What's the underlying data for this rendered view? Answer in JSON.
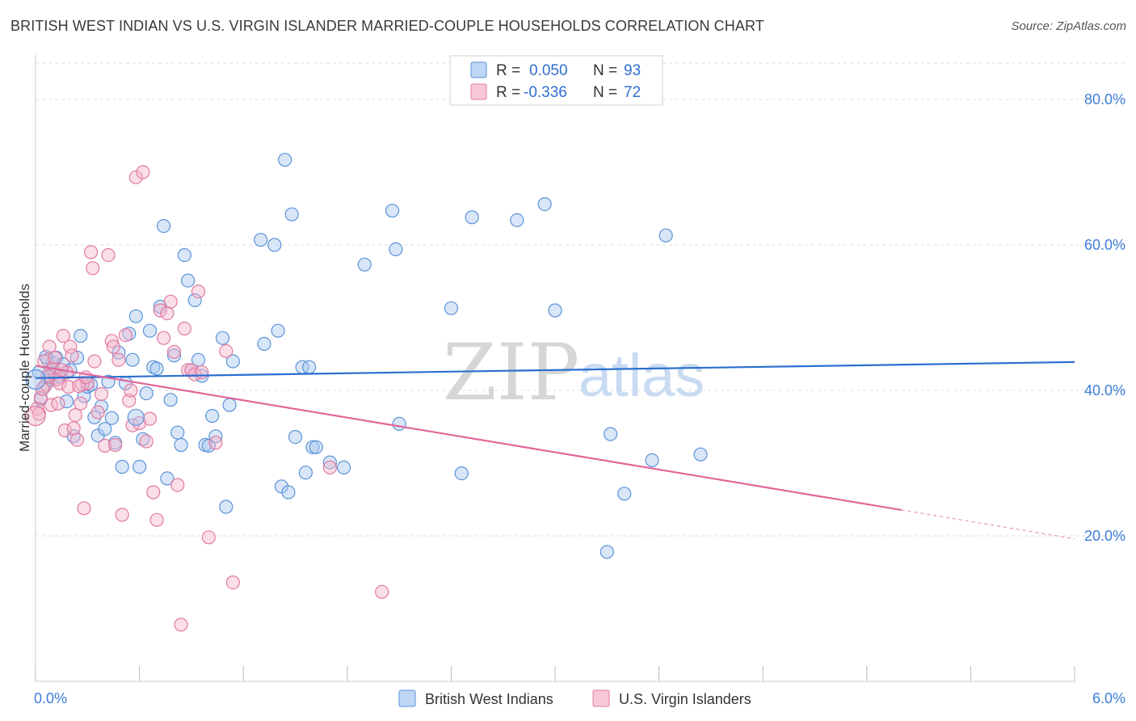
{
  "title": "BRITISH WEST INDIAN VS U.S. VIRGIN ISLANDER MARRIED-COUPLE HOUSEHOLDS CORRELATION CHART",
  "source": "Source: ZipAtlas.com",
  "watermark": {
    "zip": "ZIP",
    "atlas": "atlas"
  },
  "legend": {
    "rows": [
      {
        "r_label": "R =",
        "r_value": "0.050",
        "n_label": "N =",
        "n_value": "93"
      },
      {
        "r_label": "R =",
        "r_value": "-0.336",
        "n_label": "N =",
        "n_value": "72"
      }
    ]
  },
  "colors": {
    "blue_fill": "#a9c8f0",
    "blue_stroke": "#5b93d8",
    "blue_line": "#2a6fcf",
    "pink_fill": "#f5b5cb",
    "pink_stroke": "#e07ba0",
    "pink_line": "#e0679a",
    "tick_text": "#3d7cd6",
    "grid": "#dddddd"
  },
  "chart_data": {
    "type": "scatter",
    "xlabel": "",
    "ylabel": "Married-couple Households",
    "xlim": [
      0,
      6
    ],
    "ylim": [
      0,
      85
    ],
    "x_tick_labels": [
      "0.0%",
      "6.0%"
    ],
    "y_ticks": [
      20,
      40,
      60,
      80
    ],
    "y_tick_labels": [
      "20.0%",
      "40.0%",
      "60.0%",
      "80.0%"
    ],
    "grid": true,
    "legend_position": "top-center",
    "series": [
      {
        "name": "British West Indians",
        "r": 0.05,
        "n": 93,
        "trend": {
          "x0": 0,
          "y0": 41.7,
          "x1": 6,
          "y1": 43.9,
          "dashed_from": null
        },
        "points": [
          [
            0.02,
            42.5
          ],
          [
            0.05,
            40.5
          ],
          [
            0.07,
            44.2
          ],
          [
            0.09,
            41.5
          ],
          [
            0.1,
            43.8
          ],
          [
            0.12,
            44.5
          ],
          [
            0.14,
            42
          ],
          [
            0.16,
            43.6
          ],
          [
            0.18,
            38.5
          ],
          [
            0.2,
            42.8
          ],
          [
            0.22,
            33.7
          ],
          [
            0.24,
            44.5
          ],
          [
            0.26,
            47.5
          ],
          [
            0.28,
            39.2
          ],
          [
            0.3,
            40.5
          ],
          [
            0.32,
            40.8
          ],
          [
            0.34,
            36.3
          ],
          [
            0.36,
            33.8
          ],
          [
            0.38,
            37.8
          ],
          [
            0.4,
            34.7
          ],
          [
            0.42,
            41.2
          ],
          [
            0.44,
            36.2
          ],
          [
            0.46,
            32.8
          ],
          [
            0.48,
            45.2
          ],
          [
            0.5,
            29.5
          ],
          [
            0.52,
            41
          ],
          [
            0.54,
            47.8
          ],
          [
            0.56,
            44.2
          ],
          [
            0.58,
            50.2
          ],
          [
            0.6,
            29.5
          ],
          [
            0.62,
            33.3
          ],
          [
            0.64,
            39.6
          ],
          [
            0.66,
            48.2
          ],
          [
            0.68,
            43.2
          ],
          [
            0.7,
            43
          ],
          [
            0.72,
            51.5
          ],
          [
            0.74,
            62.6
          ],
          [
            0.76,
            27.9
          ],
          [
            0.78,
            38.7
          ],
          [
            0.8,
            44.8
          ],
          [
            0.82,
            34.2
          ],
          [
            0.84,
            32.5
          ],
          [
            0.86,
            58.6
          ],
          [
            0.88,
            55.1
          ],
          [
            0.9,
            42.8
          ],
          [
            0.92,
            52.4
          ],
          [
            0.94,
            44.2
          ],
          [
            0.96,
            42
          ],
          [
            0.98,
            32.5
          ],
          [
            1.0,
            32.4
          ],
          [
            1.02,
            36.5
          ],
          [
            1.04,
            33.7
          ],
          [
            1.08,
            47.2
          ],
          [
            1.1,
            24
          ],
          [
            1.12,
            38
          ],
          [
            1.14,
            44
          ],
          [
            1.3,
            60.7
          ],
          [
            1.32,
            46.4
          ],
          [
            1.38,
            60
          ],
          [
            1.4,
            48.2
          ],
          [
            1.42,
            26.8
          ],
          [
            1.44,
            71.7
          ],
          [
            1.46,
            26
          ],
          [
            1.48,
            64.2
          ],
          [
            1.5,
            33.6
          ],
          [
            1.54,
            43.2
          ],
          [
            1.56,
            28.7
          ],
          [
            1.58,
            43.2
          ],
          [
            1.6,
            32.2
          ],
          [
            1.62,
            32.2
          ],
          [
            1.7,
            30.1
          ],
          [
            1.78,
            29.4
          ],
          [
            1.9,
            57.3
          ],
          [
            2.06,
            64.7
          ],
          [
            2.08,
            59.4
          ],
          [
            2.1,
            35.4
          ],
          [
            2.4,
            51.3
          ],
          [
            2.46,
            28.6
          ],
          [
            2.52,
            63.8
          ],
          [
            2.78,
            63.4
          ],
          [
            2.94,
            65.6
          ],
          [
            3.0,
            51
          ],
          [
            3.3,
            17.8
          ],
          [
            3.32,
            34
          ],
          [
            3.4,
            25.8
          ],
          [
            3.56,
            30.4
          ],
          [
            3.64,
            61.3
          ],
          [
            3.84,
            31.2
          ],
          [
            0.03,
            38.8
          ],
          [
            0.06,
            44.6
          ],
          [
            0.08,
            41.8
          ],
          [
            0.11,
            42.4
          ],
          [
            0.13,
            41.9
          ]
        ],
        "radius": 8
      },
      {
        "name": "U.S. Virgin Islanders",
        "r": -0.336,
        "n": 72,
        "trend": {
          "x0": 0,
          "y0": 43.4,
          "x1": 6,
          "y1": 19.6,
          "dashed_from": 5.0
        },
        "points": [
          [
            0.01,
            37.5
          ],
          [
            0.03,
            39
          ],
          [
            0.05,
            44
          ],
          [
            0.06,
            40.8
          ],
          [
            0.08,
            46
          ],
          [
            0.09,
            38
          ],
          [
            0.1,
            43
          ],
          [
            0.12,
            41.5
          ],
          [
            0.14,
            41
          ],
          [
            0.16,
            47.5
          ],
          [
            0.17,
            34.5
          ],
          [
            0.18,
            42.5
          ],
          [
            0.2,
            46
          ],
          [
            0.22,
            34.8
          ],
          [
            0.24,
            33.2
          ],
          [
            0.26,
            38.2
          ],
          [
            0.27,
            40.8
          ],
          [
            0.28,
            23.8
          ],
          [
            0.3,
            41
          ],
          [
            0.32,
            59
          ],
          [
            0.33,
            56.8
          ],
          [
            0.34,
            44
          ],
          [
            0.36,
            37
          ],
          [
            0.38,
            39.5
          ],
          [
            0.4,
            32.4
          ],
          [
            0.42,
            58.6
          ],
          [
            0.44,
            46.8
          ],
          [
            0.45,
            46
          ],
          [
            0.46,
            32.5
          ],
          [
            0.48,
            44.2
          ],
          [
            0.5,
            22.9
          ],
          [
            0.52,
            47.6
          ],
          [
            0.54,
            38.6
          ],
          [
            0.55,
            40
          ],
          [
            0.56,
            35.2
          ],
          [
            0.58,
            69.3
          ],
          [
            0.6,
            35.5
          ],
          [
            0.62,
            70
          ],
          [
            0.64,
            33
          ],
          [
            0.66,
            36.1
          ],
          [
            0.68,
            26
          ],
          [
            0.7,
            22.2
          ],
          [
            0.72,
            51
          ],
          [
            0.74,
            47.2
          ],
          [
            0.76,
            50.6
          ],
          [
            0.78,
            52.2
          ],
          [
            0.8,
            45.3
          ],
          [
            0.82,
            27
          ],
          [
            0.84,
            7.8
          ],
          [
            0.86,
            48.5
          ],
          [
            0.88,
            42.8
          ],
          [
            0.9,
            42.8
          ],
          [
            0.92,
            42.2
          ],
          [
            0.94,
            53.6
          ],
          [
            0.96,
            42.5
          ],
          [
            1.0,
            19.8
          ],
          [
            1.04,
            32.8
          ],
          [
            1.1,
            45.4
          ],
          [
            1.14,
            13.6
          ],
          [
            1.7,
            29.4
          ],
          [
            2.0,
            12.3
          ],
          [
            0.02,
            36.8
          ],
          [
            0.04,
            40.2
          ],
          [
            0.07,
            42
          ],
          [
            0.11,
            44.5
          ],
          [
            0.13,
            38.2
          ],
          [
            0.15,
            42.8
          ],
          [
            0.19,
            40.5
          ],
          [
            0.21,
            44.8
          ],
          [
            0.23,
            36.6
          ],
          [
            0.25,
            40.6
          ],
          [
            0.29,
            41.8
          ]
        ],
        "radius": 8
      }
    ]
  },
  "bottom_legend": [
    {
      "label": "British West Indians"
    },
    {
      "label": "U.S. Virgin Islanders"
    }
  ]
}
